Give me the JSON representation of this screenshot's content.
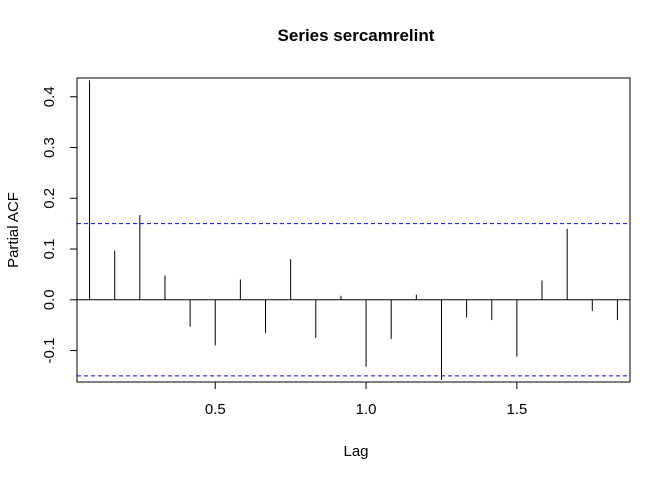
{
  "chart_data": {
    "type": "bar",
    "title": "Series  sercamrelint",
    "xlabel": "Lag",
    "ylabel": "Partial ACF",
    "xlim": [
      0.0417,
      1.875
    ],
    "ylim": [
      -0.162,
      0.437
    ],
    "x_ticks": [
      0.5,
      1.0,
      1.5
    ],
    "x_tick_labels": [
      "0.5",
      "1.0",
      "1.5"
    ],
    "y_ticks": [
      -0.1,
      0.0,
      0.1,
      0.2,
      0.3,
      0.4
    ],
    "y_tick_labels": [
      "-0.1",
      "0.0",
      "0.1",
      "0.2",
      "0.3",
      "0.4"
    ],
    "confidence_bounds": [
      0.15,
      -0.15
    ],
    "confidence_color": "#0000ff",
    "grid": false,
    "series": [
      {
        "x": [
          0.0833,
          0.1667,
          0.25,
          0.3333,
          0.4167,
          0.5,
          0.5833,
          0.6667,
          0.75,
          0.8333,
          0.9167,
          1.0,
          1.0833,
          1.1667,
          1.25,
          1.3333,
          1.4167,
          1.5,
          1.5833,
          1.6667,
          1.75,
          1.8333
        ],
        "values": [
          0.432,
          0.097,
          0.167,
          0.048,
          -0.053,
          -0.09,
          0.04,
          -0.065,
          0.08,
          -0.075,
          0.008,
          -0.132,
          -0.077,
          0.01,
          -0.158,
          -0.035,
          -0.04,
          -0.112,
          0.038,
          0.14,
          -0.022,
          -0.04
        ]
      }
    ]
  }
}
